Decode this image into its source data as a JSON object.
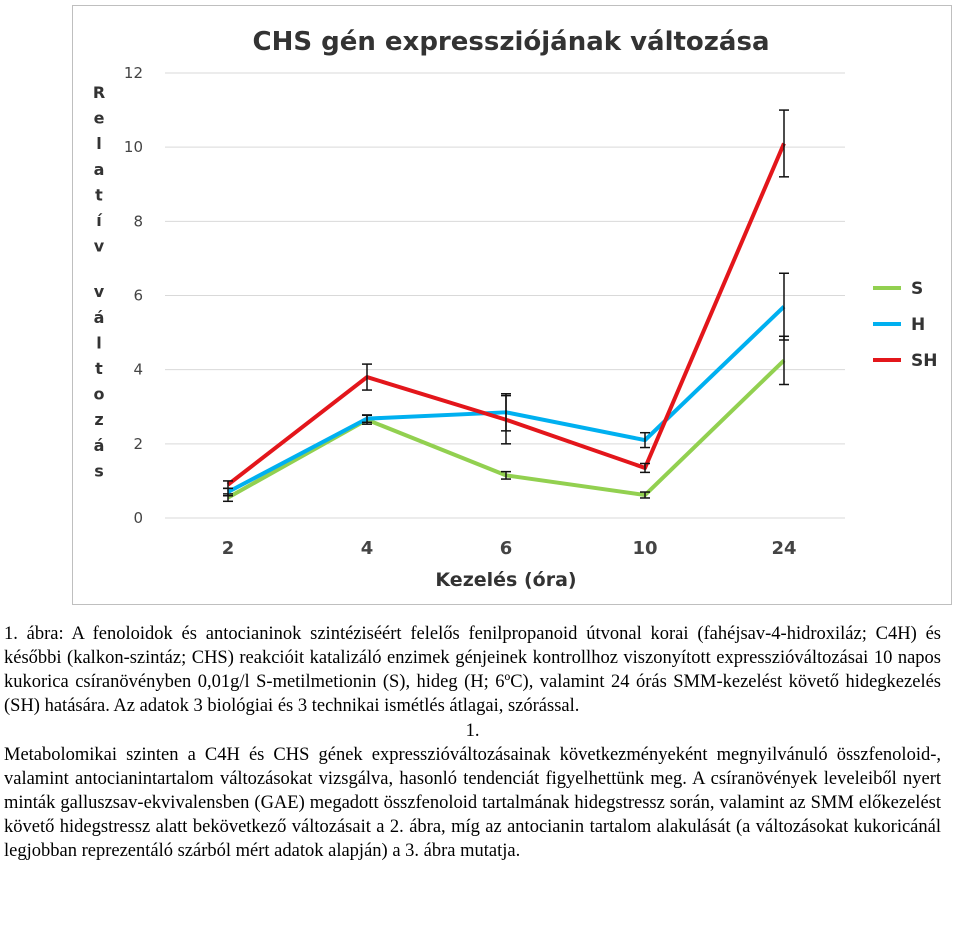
{
  "chart_data": {
    "type": "line",
    "title": "CHS gén expressziójának változása",
    "xlabel": "Kezelés (óra)",
    "ylabel": "Relatív változás",
    "categories": [
      "2",
      "4",
      "6",
      "10",
      "24"
    ],
    "ylim": [
      0,
      12
    ],
    "yticks": [
      0,
      2,
      4,
      6,
      8,
      10,
      12
    ],
    "grid": "horizontal",
    "legend_position": "right",
    "series": [
      {
        "name": "S",
        "color": "#92d050",
        "values": [
          0.55,
          2.65,
          1.15,
          0.62,
          4.25
        ],
        "errors": [
          0.1,
          0.12,
          0.1,
          0.08,
          0.65
        ]
      },
      {
        "name": "H",
        "color": "#00b0f0",
        "values": [
          0.7,
          2.68,
          2.85,
          2.1,
          5.7
        ],
        "errors": [
          0.1,
          0.1,
          0.5,
          0.2,
          0.9
        ]
      },
      {
        "name": "SH",
        "color": "#e3161b",
        "values": [
          0.9,
          3.8,
          2.65,
          1.35,
          10.1
        ],
        "errors": [
          0.1,
          0.35,
          0.65,
          0.12,
          0.9
        ]
      }
    ]
  },
  "text": {
    "caption": "1. ábra: A fenoloidok és antocianinok szintéziséért felelős fenilpropanoid útvonal korai (fahéjsav-4-hidroxiláz; C4H) és későbbi (kalkon-szintáz; CHS) reakcióit katalizáló enzimek génjeinek kontrollhoz viszonyított expresszióváltozásai 10 napos kukorica csíranövényben 0,01g/l S-metilmetionin (S), hideg (H; 6ºC), valamint 24 órás SMM-kezelést követő hidegkezelés (SH) hatására. Az adatok 3 biológiai és 3 technikai ismétlés átlagai, szórással.",
    "section_number": "1.",
    "body": "Metabolomikai szinten a C4H és CHS gének expresszióváltozásainak következményeként megnyilvánuló összfenoloid-, valamint antocianintartalom változásokat vizsgálva, hasonló tendenciát figyelhettünk meg. A csíranövények leveleiből nyert minták galluszsav-ekvivalensben (GAE) megadott összfenoloid tartalmának hidegstressz során, valamint az SMM előkezelést követő hidegstressz alatt bekövetkező változásait a 2. ábra, míg az antocianin tartalom alakulását (a változásokat kukoricánál legjobban reprezentáló szárból mért adatok alapján) a 3. ábra mutatja."
  }
}
